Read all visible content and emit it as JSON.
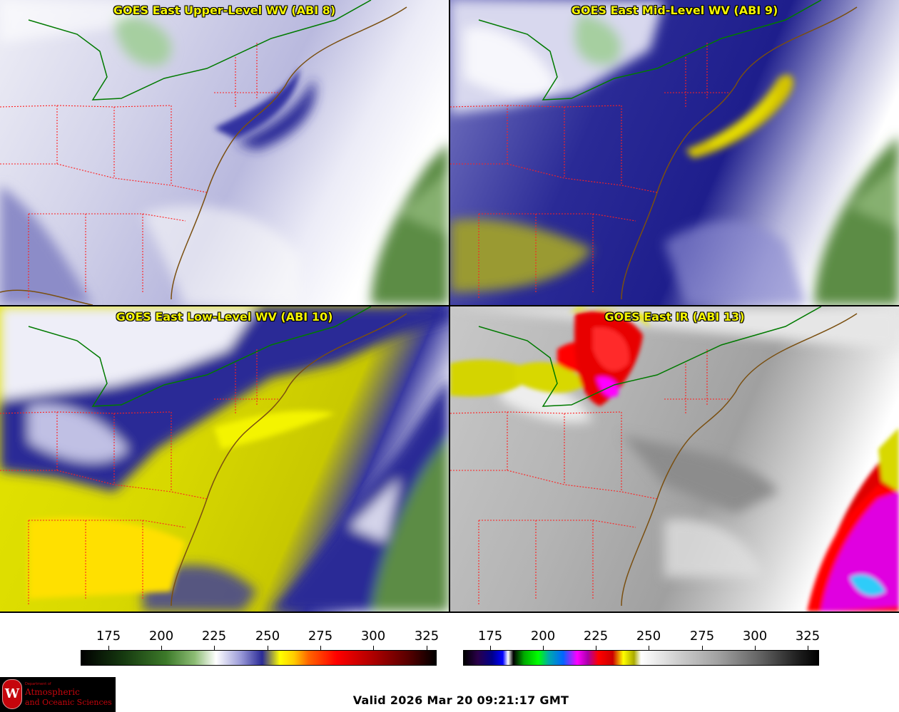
{
  "panels": [
    {
      "title": "GOES East Upper-Level WV (ABI 8)"
    },
    {
      "title": "GOES East Mid-Level WV (ABI 9)"
    },
    {
      "title": "GOES East Low-Level WV (ABI 10)"
    },
    {
      "title": "GOES East IR (ABI 13)"
    }
  ],
  "colorbars": {
    "wv": {
      "ticks": [
        "175",
        "200",
        "225",
        "250",
        "275",
        "300",
        "325"
      ]
    },
    "ir": {
      "ticks": [
        "175",
        "200",
        "225",
        "250",
        "275",
        "300",
        "325"
      ]
    }
  },
  "logo": {
    "letter": "W",
    "dept": "Department of",
    "line1": "Atmospheric",
    "line2": "and Oceanic Sciences"
  },
  "footer": {
    "valid_text": "Valid 2026 Mar 20 09:21:17 GMT"
  },
  "colors": {
    "title_text": "#f4f400",
    "coastline": "#8a5a14",
    "state_borders": "#ff2020",
    "intl_border": "#00a000"
  }
}
